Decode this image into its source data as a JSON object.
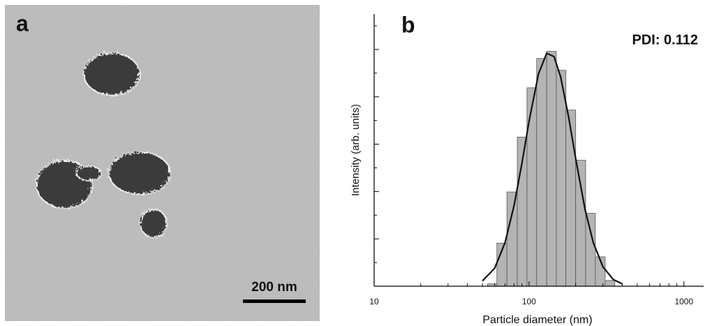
{
  "panel_a": {
    "label": "a",
    "scale_bar": "200 nm"
  },
  "chart_data": {
    "type": "histogram",
    "panel_label": "b",
    "annotation": "PDI: 0.112",
    "xlabel": "Particle diameter (nm)",
    "ylabel": "Intensity (arb. units)",
    "xscale": "log",
    "xlim": [
      10,
      1340
    ],
    "xticks": [
      10,
      100,
      1000
    ],
    "xminorticks": [
      20,
      30,
      40,
      50,
      60,
      70,
      80,
      90,
      200,
      300,
      400,
      500,
      600,
      700,
      800,
      900
    ],
    "ylim": [
      0,
      5.75
    ],
    "yticks": [
      0,
      1,
      2,
      3,
      4,
      5
    ],
    "yminorticks": [
      0.5,
      1.5,
      2.5,
      3.5,
      4.5,
      5.5
    ],
    "bins": [
      54,
      62,
      72,
      84,
      97,
      112,
      130,
      150,
      173,
      200,
      232,
      268,
      310,
      358
    ],
    "values": [
      0.05,
      0.91,
      1.99,
      3.15,
      4.19,
      4.81,
      4.96,
      4.56,
      3.72,
      2.66,
      1.54,
      0.62,
      0.12
    ],
    "color": "#b4b4b4",
    "curve_x": [
      50,
      60,
      70,
      80,
      90,
      100,
      115,
      130,
      145,
      160,
      180,
      200,
      230,
      260,
      300,
      350,
      400
    ],
    "curve_y": [
      0.11,
      0.38,
      0.92,
      1.7,
      2.6,
      3.48,
      4.48,
      4.92,
      4.85,
      4.42,
      3.58,
      2.7,
      1.62,
      0.92,
      0.41,
      0.14,
      0.05
    ],
    "curve_color": "#111111"
  }
}
